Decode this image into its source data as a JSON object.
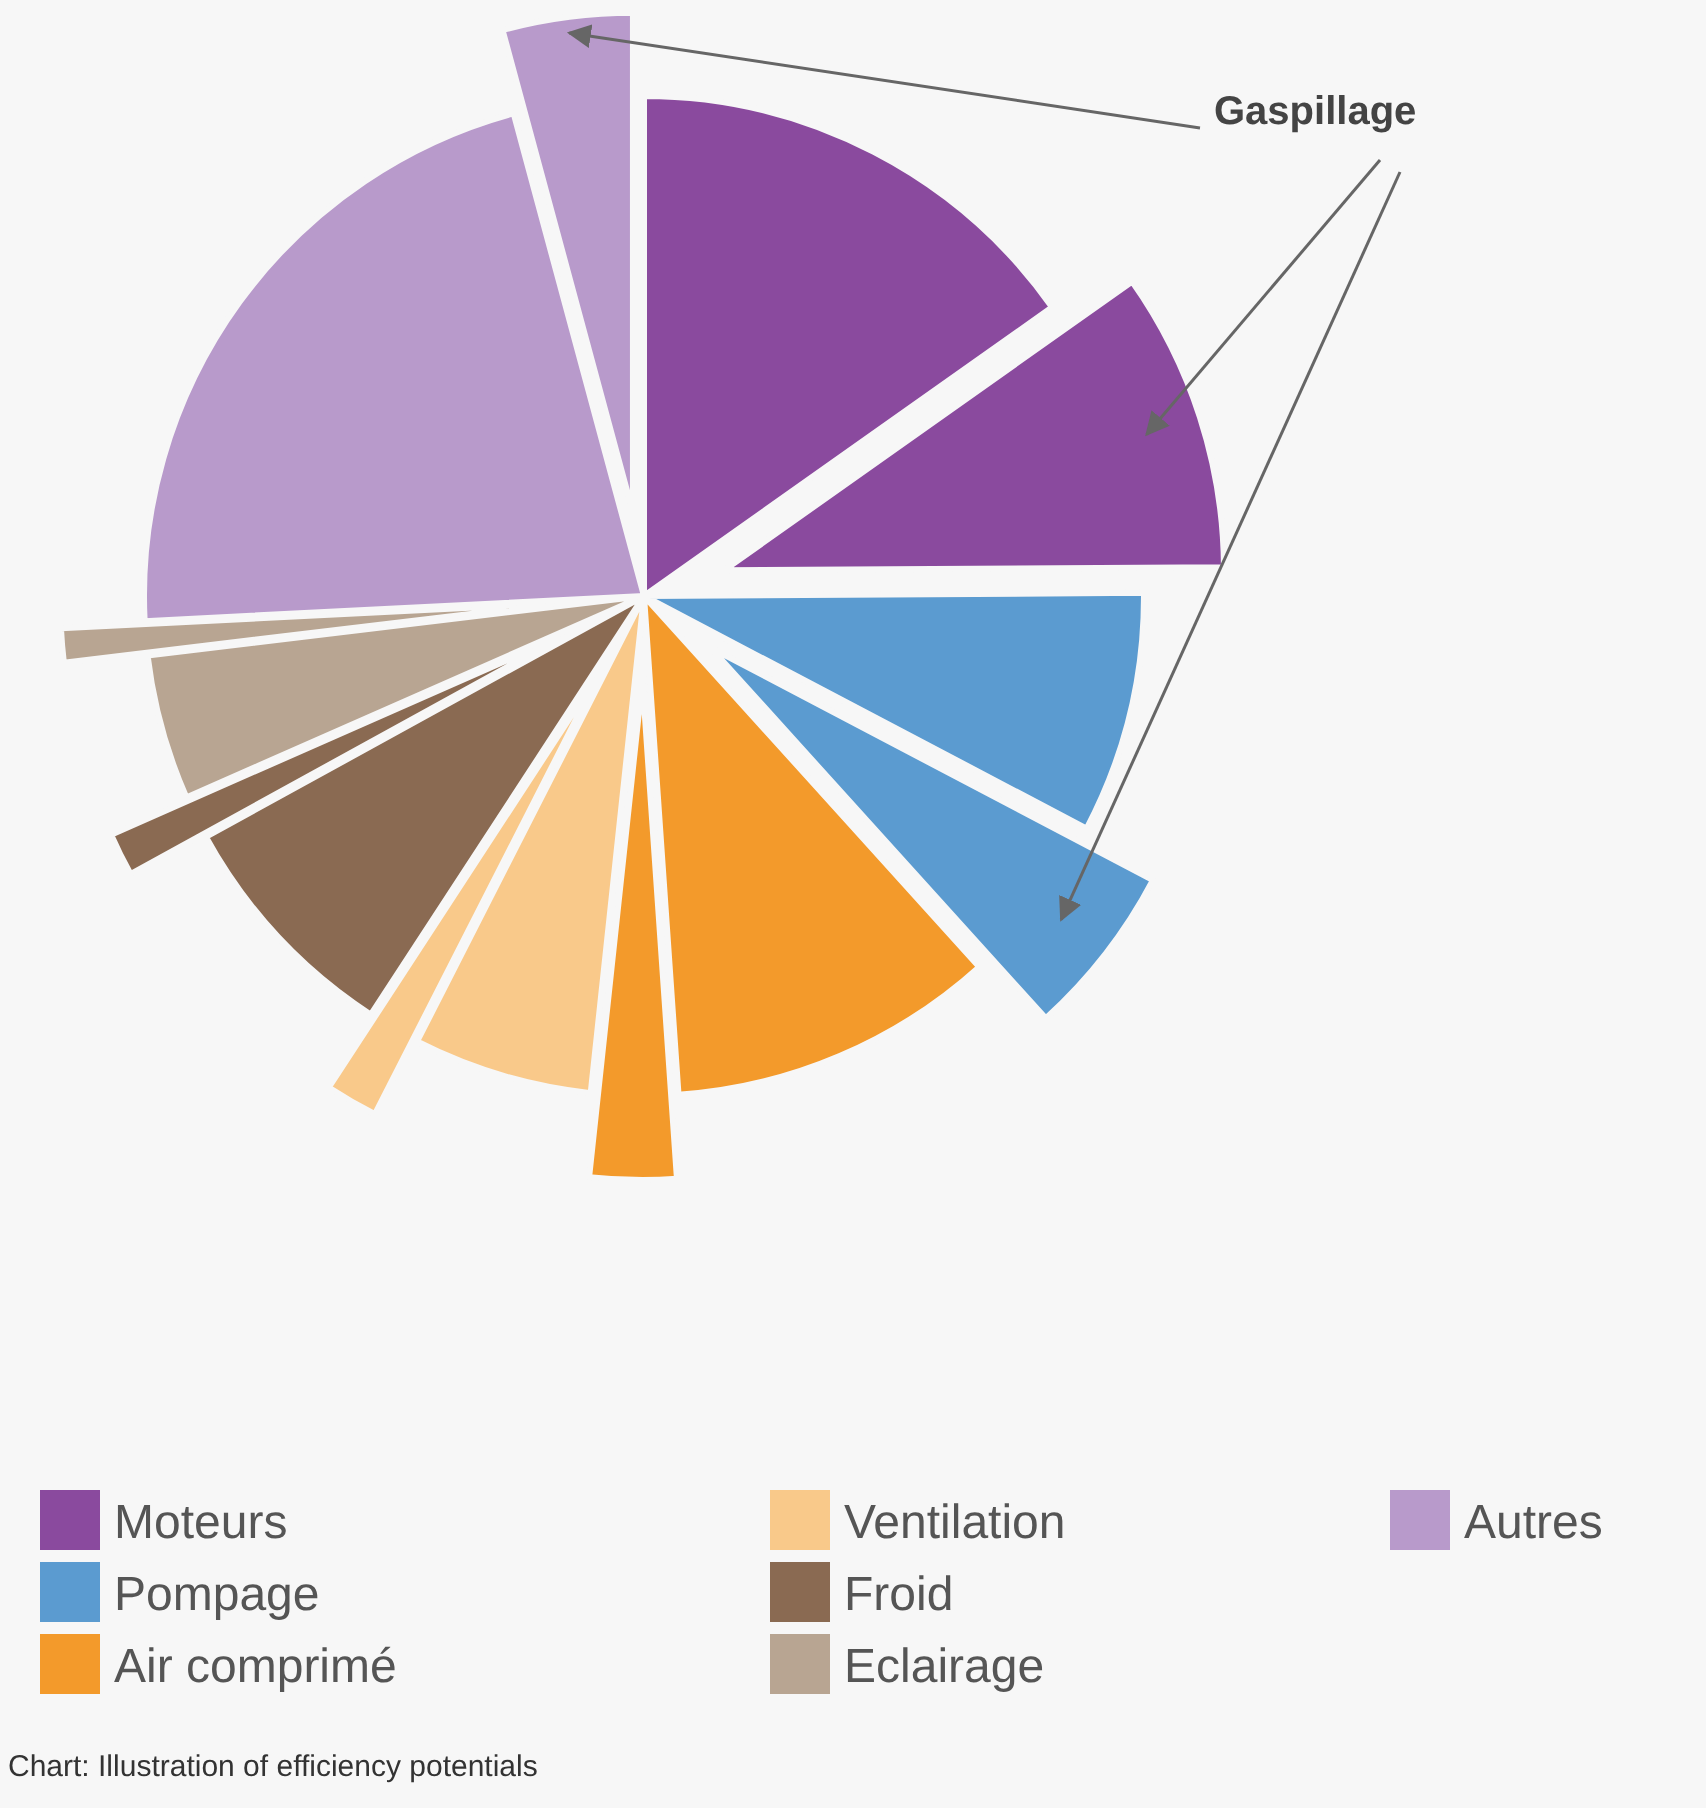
{
  "chart_data": {
    "type": "pie",
    "categories": [
      "Moteurs",
      null,
      "Pompage",
      null,
      "Air comprimé",
      null,
      "Ventilation",
      null,
      "Froid",
      null,
      "Eclairage",
      null,
      "Autres",
      null
    ],
    "values": [
      15.2,
      9.7,
      7.8,
      5.6,
      10.6,
      2.8,
      5.8,
      1.7,
      7.8,
      1.4,
      4.7,
      1.1,
      21.6,
      4.2
    ],
    "colors": [
      "#8a4a9e",
      "#8a4a9e",
      "#5b9bd0",
      "#5b9bd0",
      "#f39a2b",
      "#f39a2b",
      "#f9c98a",
      "#f9c98a",
      "#8a6a52",
      "#8a6a52",
      "#b8a592",
      "#b8a592",
      "#b89acb",
      "#b89acb"
    ],
    "legend": "bottom",
    "annotations": [
      "Gaspillage",
      "Chart: Illustration of efficiency potentials"
    ]
  }
}
